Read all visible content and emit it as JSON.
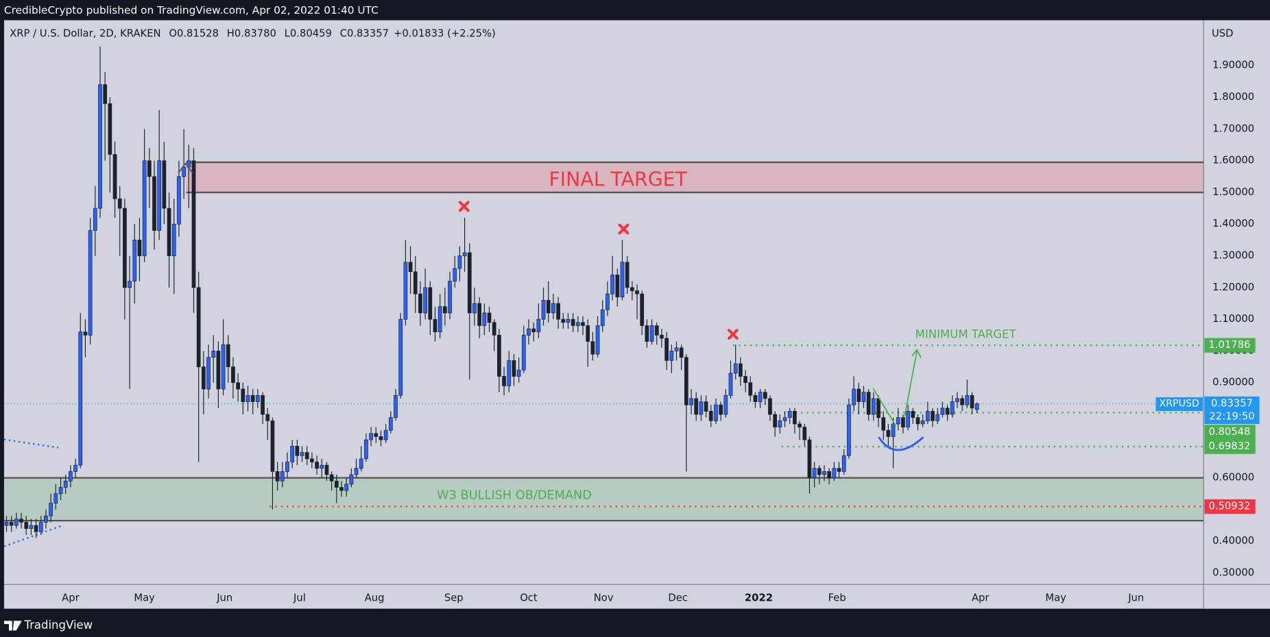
{
  "published": "CredibleCrypto published on TradingView.com, Apr 02, 2022 01:40 UTC",
  "brand": "TradingView",
  "chart_data": {
    "type": "candlestick",
    "title": "XRP / U.S. Dollar, 2D, KRAKEN",
    "ohlc_legend": [
      {
        "label": "O",
        "value": "0.81528"
      },
      {
        "label": "H",
        "value": "0.83780"
      },
      {
        "label": "L",
        "value": "0.80459"
      },
      {
        "label": "C",
        "value": "0.83357"
      }
    ],
    "change": "+0.01833 (+2.25%)",
    "currency": "USD",
    "symbol": "XRPUSD",
    "countdown": "22:19:50",
    "series": [
      {
        "name": "XRPUSD",
        "up_color": "#2962ff",
        "down_color": "#1e222d",
        "open": [
          0.45,
          0.46,
          0.45,
          0.47,
          0.46,
          0.44,
          0.45,
          0.43,
          0.46,
          0.48,
          0.52,
          0.55,
          0.57,
          0.59,
          0.62,
          0.64,
          1.06,
          1.05,
          1.38,
          1.45,
          1.84,
          1.78,
          1.62,
          1.48,
          1.45,
          1.2,
          1.22,
          1.35,
          1.3,
          1.6,
          1.55,
          1.38,
          1.6,
          1.45,
          1.3,
          1.4,
          1.55,
          1.58,
          1.6,
          1.2,
          0.95,
          0.88,
          0.98,
          1,
          0.88,
          1.02,
          0.95,
          0.9,
          0.88,
          0.84,
          0.86,
          0.84,
          0.86,
          0.8,
          0.78,
          0.62,
          0.59,
          0.62,
          0.65,
          0.7,
          0.67,
          0.68,
          0.66,
          0.65,
          0.63,
          0.64,
          0.61,
          0.59,
          0.57,
          0.56,
          0.58,
          0.61,
          0.63,
          0.66,
          0.72,
          0.74,
          0.73,
          0.72,
          0.75,
          0.79,
          0.86,
          1.1,
          1.28,
          1.25,
          1.18,
          1.12,
          1.2,
          1.1,
          1.06,
          1.14,
          1.12,
          1.22,
          1.26,
          1.3,
          1.31,
          1.12,
          1.15,
          1.08,
          1.12,
          1.09,
          1.05,
          0.92,
          0.89,
          0.97,
          0.92,
          0.94,
          1.05,
          1.07,
          1.06,
          1.1,
          1.16,
          1.12,
          1.15,
          1.1,
          1.09,
          1.1,
          1.08,
          1.09,
          1.08,
          1.03,
          0.99,
          1.08,
          1.13,
          1.18,
          1.24,
          1.17,
          1.28,
          1.2,
          1.19,
          1.18,
          1.08,
          1.03,
          1.08,
          1.05,
          1.04,
          0.97,
          1,
          1.01,
          0.98,
          0.83,
          0.85,
          0.8,
          0.84,
          0.81,
          0.78,
          0.83,
          0.8,
          0.86,
          0.93,
          0.96,
          0.92,
          0.9,
          0.86,
          0.84,
          0.87,
          0.85,
          0.8,
          0.76,
          0.78,
          0.79,
          0.81,
          0.77,
          0.76,
          0.72,
          0.6,
          0.63,
          0.61,
          0.62,
          0.6,
          0.63,
          0.62,
          0.67,
          0.83,
          0.88,
          0.84,
          0.87,
          0.8,
          0.85,
          0.79,
          0.75,
          0.73,
          0.77,
          0.79,
          0.76,
          0.81,
          0.79,
          0.77,
          0.78,
          0.81,
          0.78,
          0.8,
          0.82,
          0.8,
          0.84,
          0.85,
          0.83,
          0.86,
          0.81528
        ],
        "high": [
          0.48,
          0.48,
          0.49,
          0.49,
          0.48,
          0.47,
          0.47,
          0.48,
          0.5,
          0.55,
          0.58,
          0.6,
          0.61,
          0.64,
          0.66,
          1.12,
          1.1,
          1.42,
          1.52,
          1.96,
          1.88,
          1.8,
          1.66,
          1.52,
          1.48,
          1.3,
          1.4,
          1.42,
          1.7,
          1.64,
          1.6,
          1.76,
          1.66,
          1.5,
          1.48,
          1.6,
          1.7,
          1.65,
          1.64,
          1.25,
          1,
          1.02,
          1.05,
          1.03,
          1.1,
          1.05,
          0.98,
          0.93,
          0.9,
          0.89,
          0.88,
          0.88,
          0.87,
          0.82,
          0.79,
          0.65,
          0.65,
          0.68,
          0.72,
          0.72,
          0.7,
          0.7,
          0.68,
          0.67,
          0.66,
          0.65,
          0.62,
          0.61,
          0.59,
          0.6,
          0.63,
          0.66,
          0.7,
          0.74,
          0.76,
          0.76,
          0.75,
          0.77,
          0.81,
          0.88,
          1.12,
          1.35,
          1.33,
          1.3,
          1.22,
          1.26,
          1.22,
          1.14,
          1.18,
          1.2,
          1.25,
          1.3,
          1.33,
          1.42,
          1.34,
          1.2,
          1.17,
          1.15,
          1.14,
          1.1,
          1.07,
          0.95,
          1,
          0.99,
          0.98,
          1.08,
          1.1,
          1.09,
          1.15,
          1.2,
          1.22,
          1.18,
          1.17,
          1.12,
          1.12,
          1.12,
          1.11,
          1.11,
          1.1,
          1.06,
          1.11,
          1.16,
          1.22,
          1.3,
          1.26,
          1.35,
          1.3,
          1.22,
          1.21,
          1.19,
          1.1,
          1.1,
          1.09,
          1.07,
          1.06,
          1.02,
          1.03,
          1.02,
          0.99,
          0.88,
          0.87,
          0.86,
          0.86,
          0.83,
          0.85,
          0.84,
          0.88,
          0.97,
          1.02,
          0.98,
          0.94,
          0.92,
          0.87,
          0.88,
          0.88,
          0.86,
          0.81,
          0.8,
          0.81,
          0.82,
          0.82,
          0.78,
          0.77,
          0.73,
          0.65,
          0.64,
          0.64,
          0.63,
          0.65,
          0.65,
          0.69,
          0.85,
          0.92,
          0.9,
          0.89,
          0.88,
          0.87,
          0.86,
          0.81,
          0.77,
          0.79,
          0.82,
          0.8,
          0.83,
          0.82,
          0.8,
          0.8,
          0.84,
          0.82,
          0.82,
          0.84,
          0.83,
          0.86,
          0.87,
          0.86,
          0.91,
          0.87,
          0.8378
        ],
        "low": [
          0.43,
          0.43,
          0.44,
          0.44,
          0.42,
          0.42,
          0.41,
          0.42,
          0.44,
          0.46,
          0.5,
          0.53,
          0.55,
          0.57,
          0.6,
          0.63,
          0.98,
          1.02,
          1.3,
          1.42,
          1.6,
          1.5,
          1.42,
          1.3,
          1.1,
          0.88,
          1.15,
          1.22,
          1.28,
          1.45,
          1.32,
          1.35,
          1.4,
          1.2,
          1.18,
          1.36,
          1.48,
          1.45,
          1.12,
          0.65,
          0.8,
          0.85,
          0.9,
          0.82,
          0.86,
          0.9,
          0.85,
          0.84,
          0.8,
          0.81,
          0.8,
          0.82,
          0.77,
          0.72,
          0.5,
          0.56,
          0.57,
          0.6,
          0.63,
          0.64,
          0.65,
          0.64,
          0.63,
          0.61,
          0.6,
          0.59,
          0.56,
          0.52,
          0.54,
          0.54,
          0.57,
          0.6,
          0.62,
          0.65,
          0.7,
          0.71,
          0.7,
          0.71,
          0.74,
          0.78,
          0.85,
          1.08,
          1.18,
          1.12,
          1.08,
          1.1,
          1.05,
          1.03,
          1.04,
          1.08,
          1.1,
          1.2,
          1.22,
          1.25,
          0.91,
          1.08,
          1.04,
          1.05,
          1.06,
          1,
          0.87,
          0.86,
          0.87,
          0.89,
          0.9,
          0.93,
          1.02,
          1.03,
          1.04,
          1.08,
          1.09,
          1.1,
          1.07,
          1.07,
          1.07,
          1.06,
          1.06,
          1.05,
          0.95,
          0.97,
          0.98,
          1.06,
          1.11,
          1.16,
          1.14,
          1.16,
          1.18,
          1.16,
          1.1,
          1.05,
          1.01,
          1.02,
          1.02,
          1.01,
          0.94,
          0.93,
          0.97,
          0.94,
          0.62,
          0.8,
          0.78,
          0.78,
          0.79,
          0.76,
          0.77,
          0.78,
          0.79,
          0.85,
          0.91,
          0.89,
          0.87,
          0.84,
          0.82,
          0.82,
          0.83,
          0.78,
          0.73,
          0.74,
          0.76,
          0.77,
          0.74,
          0.72,
          0.7,
          0.55,
          0.57,
          0.58,
          0.59,
          0.58,
          0.59,
          0.6,
          0.61,
          0.66,
          0.81,
          0.8,
          0.82,
          0.78,
          0.78,
          0.76,
          0.72,
          0.7,
          0.63,
          0.75,
          0.74,
          0.75,
          0.77,
          0.75,
          0.76,
          0.77,
          0.76,
          0.77,
          0.79,
          0.78,
          0.79,
          0.82,
          0.81,
          0.82,
          0.8,
          0.80459
        ],
        "close": [
          0.46,
          0.45,
          0.47,
          0.46,
          0.44,
          0.45,
          0.43,
          0.46,
          0.48,
          0.52,
          0.55,
          0.57,
          0.59,
          0.62,
          0.64,
          1.06,
          1.05,
          1.38,
          1.45,
          1.84,
          1.78,
          1.62,
          1.48,
          1.45,
          1.2,
          1.22,
          1.35,
          1.3,
          1.6,
          1.55,
          1.38,
          1.6,
          1.45,
          1.3,
          1.4,
          1.55,
          1.58,
          1.6,
          1.2,
          0.95,
          0.88,
          0.98,
          1,
          0.88,
          1.02,
          0.95,
          0.9,
          0.88,
          0.84,
          0.86,
          0.84,
          0.86,
          0.8,
          0.78,
          0.62,
          0.59,
          0.62,
          0.65,
          0.7,
          0.67,
          0.68,
          0.66,
          0.65,
          0.63,
          0.64,
          0.61,
          0.59,
          0.57,
          0.56,
          0.58,
          0.61,
          0.63,
          0.66,
          0.72,
          0.74,
          0.73,
          0.72,
          0.75,
          0.79,
          0.86,
          1.1,
          1.28,
          1.25,
          1.18,
          1.12,
          1.2,
          1.1,
          1.06,
          1.14,
          1.12,
          1.22,
          1.26,
          1.3,
          1.31,
          1.12,
          1.15,
          1.08,
          1.12,
          1.09,
          1.05,
          0.92,
          0.89,
          0.97,
          0.92,
          0.94,
          1.05,
          1.07,
          1.06,
          1.1,
          1.16,
          1.12,
          1.15,
          1.1,
          1.09,
          1.1,
          1.08,
          1.09,
          1.08,
          1.03,
          0.99,
          1.08,
          1.13,
          1.18,
          1.24,
          1.17,
          1.28,
          1.2,
          1.19,
          1.18,
          1.08,
          1.03,
          1.08,
          1.05,
          1.04,
          0.97,
          1,
          1.01,
          0.98,
          0.83,
          0.85,
          0.8,
          0.84,
          0.81,
          0.78,
          0.83,
          0.8,
          0.86,
          0.93,
          0.96,
          0.92,
          0.9,
          0.86,
          0.84,
          0.87,
          0.85,
          0.8,
          0.76,
          0.78,
          0.79,
          0.81,
          0.77,
          0.76,
          0.72,
          0.6,
          0.63,
          0.61,
          0.62,
          0.6,
          0.63,
          0.62,
          0.67,
          0.83,
          0.88,
          0.84,
          0.87,
          0.8,
          0.85,
          0.79,
          0.75,
          0.73,
          0.77,
          0.79,
          0.76,
          0.81,
          0.79,
          0.77,
          0.78,
          0.81,
          0.78,
          0.8,
          0.82,
          0.8,
          0.84,
          0.85,
          0.83,
          0.86,
          0.82,
          0.83357
        ]
      }
    ],
    "xlim": [
      -0.5,
      243
    ],
    "xticks": [
      {
        "value": 13,
        "label": "Apr"
      },
      {
        "value": 28,
        "label": "May"
      },
      {
        "value": 44.3,
        "label": "Jun"
      },
      {
        "value": 59.5,
        "label": "Jul"
      },
      {
        "value": 74.7,
        "label": "Aug"
      },
      {
        "value": 90.8,
        "label": "Sep"
      },
      {
        "value": 106,
        "label": "Oct"
      },
      {
        "value": 121.2,
        "label": "Nov"
      },
      {
        "value": 136.3,
        "label": "Dec"
      },
      {
        "value": 152.7,
        "label": "2022"
      },
      {
        "value": 168.6,
        "label": "Feb"
      },
      {
        "value": 197.7,
        "label": "Apr"
      },
      {
        "value": 213,
        "label": "May"
      },
      {
        "value": 229.3,
        "label": "Jun"
      }
    ],
    "ylim": [
      0.264,
      2.043
    ],
    "yticks": [
      {
        "value": 0.3,
        "label": "0.30000"
      },
      {
        "value": 0.4,
        "label": "0.40000"
      },
      {
        "value": 0.5,
        "label": "0.50000"
      },
      {
        "value": 0.6,
        "label": "0.60000"
      },
      {
        "value": 0.7,
        "label": "0.70000"
      },
      {
        "value": 0.8,
        "label": "0.80000"
      },
      {
        "value": 0.9,
        "label": "0.90000"
      },
      {
        "value": 1.0,
        "label": "1.00000"
      },
      {
        "value": 1.1,
        "label": "1.10000"
      },
      {
        "value": 1.2,
        "label": "1.20000"
      },
      {
        "value": 1.3,
        "label": "1.30000"
      },
      {
        "value": 1.4,
        "label": "1.40000"
      },
      {
        "value": 1.5,
        "label": "1.50000"
      },
      {
        "value": 1.6,
        "label": "1.60000"
      },
      {
        "value": 1.7,
        "label": "1.70000"
      },
      {
        "value": 1.8,
        "label": "1.80000"
      },
      {
        "value": 1.9,
        "label": "1.90000"
      }
    ],
    "grid": false,
    "levels": [
      {
        "value": 1.01786,
        "color": "#4caf50"
      },
      {
        "value": 0.80548,
        "color": "#4caf50"
      },
      {
        "value": 0.69832,
        "color": "#4caf50"
      },
      {
        "value": 0.50932,
        "color": "#f23645"
      }
    ],
    "zones": [
      {
        "label": "FINAL TARGET",
        "from": 1.5,
        "to": 1.595,
        "color": "#f23645"
      },
      {
        "label": "W3 BULLISH OB/DEMAND",
        "from": 0.465,
        "to": 0.6,
        "color": "#4caf50"
      }
    ],
    "annotations": [
      {
        "text": "MINIMUM TARGET",
        "color": "#4caf50"
      }
    ]
  }
}
